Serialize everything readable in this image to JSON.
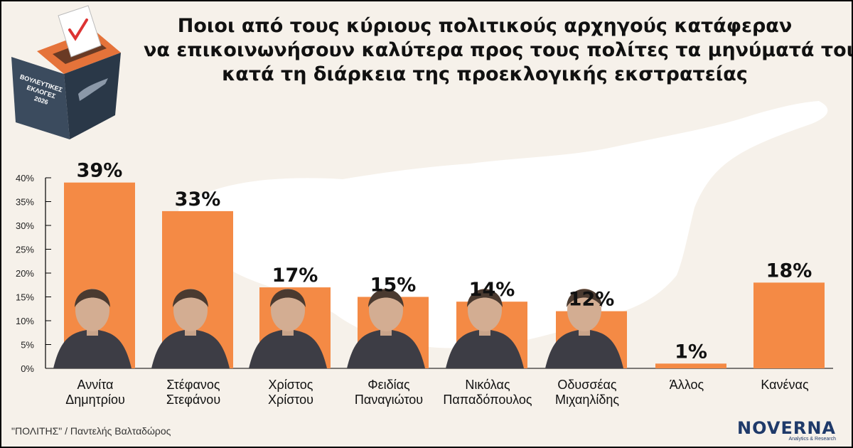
{
  "title_lines": [
    "Ποιοι από τους κύριους πολιτικούς αρχηγούς κατάφεραν",
    "να επικοινωνήσουν καλύτερα προς τους πολίτες τα μηνύματά τους",
    "κατά τη διάρκεια της προεκλογικής εκστρατείας"
  ],
  "ballot_box_text": [
    "ΒΟΥΛΕΥΤΙΚΕΣ",
    "ΕΚΛΟΓΕΣ",
    "2026"
  ],
  "footer": {
    "credit": "\"ΠΟΛΙΤΗΣ\" / Παντελής Βαλταδώρος"
  },
  "brand": {
    "name": "NOVERNA",
    "tagline": "Analytics & Research"
  },
  "colors": {
    "bar": "#f48a45",
    "background": "#f6f1ea",
    "map": "#ffffff",
    "ballot_dark": "#2f3e50",
    "ballot_orange": "#e5733a"
  },
  "chart_data": {
    "type": "bar",
    "categories": [
      [
        "Αννίτα",
        "Δημητρίου"
      ],
      [
        "Στέφανος",
        "Στεφάνου"
      ],
      [
        "Χρίστος",
        "Χρίστου"
      ],
      [
        "Φειδίας",
        "Παναγιώτου"
      ],
      [
        "Νικόλας",
        "Παπαδόπουλος"
      ],
      [
        "Οδυσσέας",
        "Μιχαηλίδης"
      ],
      [
        "Άλλος"
      ],
      [
        "Κανένας"
      ]
    ],
    "values": [
      39,
      33,
      17,
      15,
      14,
      12,
      1,
      18
    ],
    "value_labels": [
      "39%",
      "33%",
      "17%",
      "15%",
      "14%",
      "12%",
      "1%",
      "18%"
    ],
    "yticks": [
      "0%",
      "5%",
      "10%",
      "15%",
      "20%",
      "25%",
      "30%",
      "35%",
      "40%"
    ],
    "ylim": [
      0,
      40
    ],
    "has_photo": [
      true,
      true,
      true,
      true,
      true,
      true,
      false,
      false
    ],
    "photo_icons": [
      "person-photo-icon",
      "person-photo-icon",
      "person-photo-icon",
      "person-photo-icon",
      "person-photo-icon",
      "person-photo-icon"
    ],
    "grid": false
  }
}
